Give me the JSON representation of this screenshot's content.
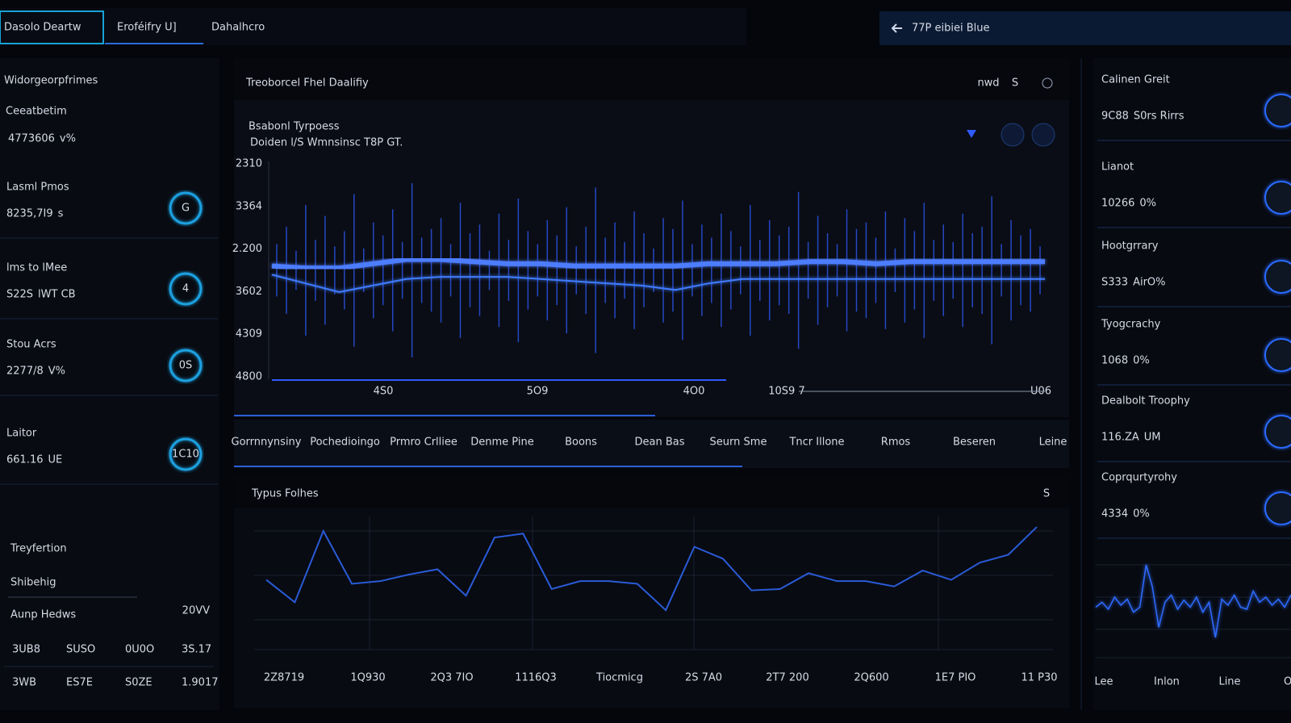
{
  "nav": {
    "tabs": [
      "Dasolo Deartw",
      "Eroféifry  U]",
      "Dahalhcro"
    ],
    "search": "77P eibiei Blue"
  },
  "left": {
    "title": "Widorgeorpfrimes",
    "subtitle": "Ceeatbetim",
    "value": "4773606",
    "unit": "v%",
    "cards": [
      {
        "label": "Lasml Pmos",
        "value": "8235,7I9",
        "unit": "s",
        "icon": "G"
      },
      {
        "label": "lms to lMee",
        "value": "S22S",
        "unit": "lWT CB",
        "icon": "4"
      },
      {
        "label": "Stou Acrs",
        "value": "2277/8",
        "unit": "V%",
        "icon": "0S"
      },
      {
        "label": "Laitor",
        "value": "661.16",
        "unit": "UE",
        "icon": "1C10"
      }
    ],
    "section": {
      "items": [
        "Treyfertion",
        "Shibehig",
        "Aunp Hedws"
      ],
      "badge": "20VV",
      "rows": [
        [
          "3UB8",
          "SUSO",
          "0U0O",
          "3S.17"
        ],
        [
          "3WB",
          "ES7E",
          "S0ZE",
          "1.9017"
        ]
      ]
    }
  },
  "main": {
    "header": "Treoborcel Fhel Daalifiy",
    "controls": [
      "nwd",
      "S"
    ],
    "chart": {
      "type": "line",
      "title": "Bsabonl Tyrpoess",
      "subtitle": "Doiden l/S   Wmnsinsc  T8P GT.",
      "y_labels": [
        "2310",
        "3364",
        "2.200",
        "3602",
        "4309",
        "4800"
      ],
      "x_labels": [
        "4S0",
        "5O9",
        "4O0",
        "10S9 7",
        "U06"
      ],
      "ylim": [
        0,
        100
      ],
      "color": "#2f5bff",
      "upper": [
        52,
        51,
        51,
        53,
        55,
        55,
        54,
        53,
        53,
        52,
        52,
        52,
        52,
        53,
        53,
        53,
        54,
        54,
        53,
        54,
        54,
        54,
        54,
        54
      ],
      "lower": [
        48,
        44,
        40,
        43,
        46,
        47,
        47,
        47,
        46,
        45,
        44,
        43,
        41,
        44,
        46,
        46,
        46,
        46,
        46,
        46,
        46,
        46,
        46,
        46
      ],
      "spikes": [
        12,
        20,
        9,
        30,
        14,
        25,
        11,
        18,
        35,
        10,
        22,
        16,
        28,
        13,
        40,
        15,
        19,
        24,
        12,
        31,
        17,
        21,
        9,
        26,
        14,
        33,
        18,
        12,
        23,
        16,
        29,
        11,
        20,
        38,
        15,
        22,
        13,
        27,
        17,
        10,
        24,
        19,
        32,
        12,
        21,
        15,
        26,
        18,
        11,
        30,
        14,
        23,
        16,
        20,
        36,
        13,
        25,
        17,
        12,
        28,
        19,
        22,
        15,
        27,
        10,
        24,
        18,
        31,
        14,
        21,
        13,
        26,
        17,
        20,
        34,
        12,
        23,
        16,
        19,
        11
      ]
    },
    "tabs": [
      "Gorrnnynsiny",
      "Pochedioingo",
      "Prmro Crlliee",
      "Denme Pine",
      "Boons",
      "Dean Bas",
      "Seurn Sme",
      "Tncr Illone",
      "Rmos",
      "Beseren",
      "Leine"
    ]
  },
  "bottom": {
    "title": "Typus Folhes",
    "chart": {
      "type": "line",
      "x_labels": [
        "2Z8719",
        "1Q930",
        "2Q3 7IO",
        "1116Q3",
        "Tiocmicg",
        "2S 7A0",
        "2T7 200",
        "2Q600",
        "1E7 PIO",
        "11 P30"
      ],
      "ylim": [
        0,
        110
      ],
      "color": "#2a5bd7",
      "values": [
        62,
        45,
        99,
        59,
        61,
        66,
        70,
        50,
        94,
        97,
        55,
        61,
        61,
        59,
        39,
        87,
        78,
        54,
        55,
        67,
        61,
        61,
        57,
        69,
        62,
        75,
        81,
        102
      ]
    }
  },
  "right": {
    "cards": [
      {
        "label": "Calinen Greit",
        "value": "9C88",
        "unit": "S0rs Rirrs"
      },
      {
        "label": "Lianot",
        "value": "10266",
        "unit": "0%"
      },
      {
        "label": "Hootgrrary",
        "value": "S333",
        "unit": "AirO%"
      },
      {
        "label": "Tyogcrachy",
        "value": "1068",
        "unit": "0%"
      },
      {
        "label": "Dealbolt Troophy",
        "value": "116.ZA",
        "unit": "UM"
      },
      {
        "label": "Coprqurtyrohy",
        "value": "4334",
        "unit": "0%"
      }
    ],
    "chart": {
      "type": "line",
      "x_labels": [
        "Lee",
        "Inlon",
        "Line",
        "Onl"
      ],
      "ylim": [
        0,
        100
      ],
      "color": "#2f6bff",
      "values": [
        50,
        55,
        48,
        60,
        52,
        58,
        45,
        50,
        92,
        70,
        30,
        55,
        62,
        48,
        57,
        50,
        60,
        45,
        55,
        20,
        58,
        52,
        62,
        50,
        48,
        66,
        55,
        60,
        52,
        58,
        50,
        62
      ]
    }
  }
}
